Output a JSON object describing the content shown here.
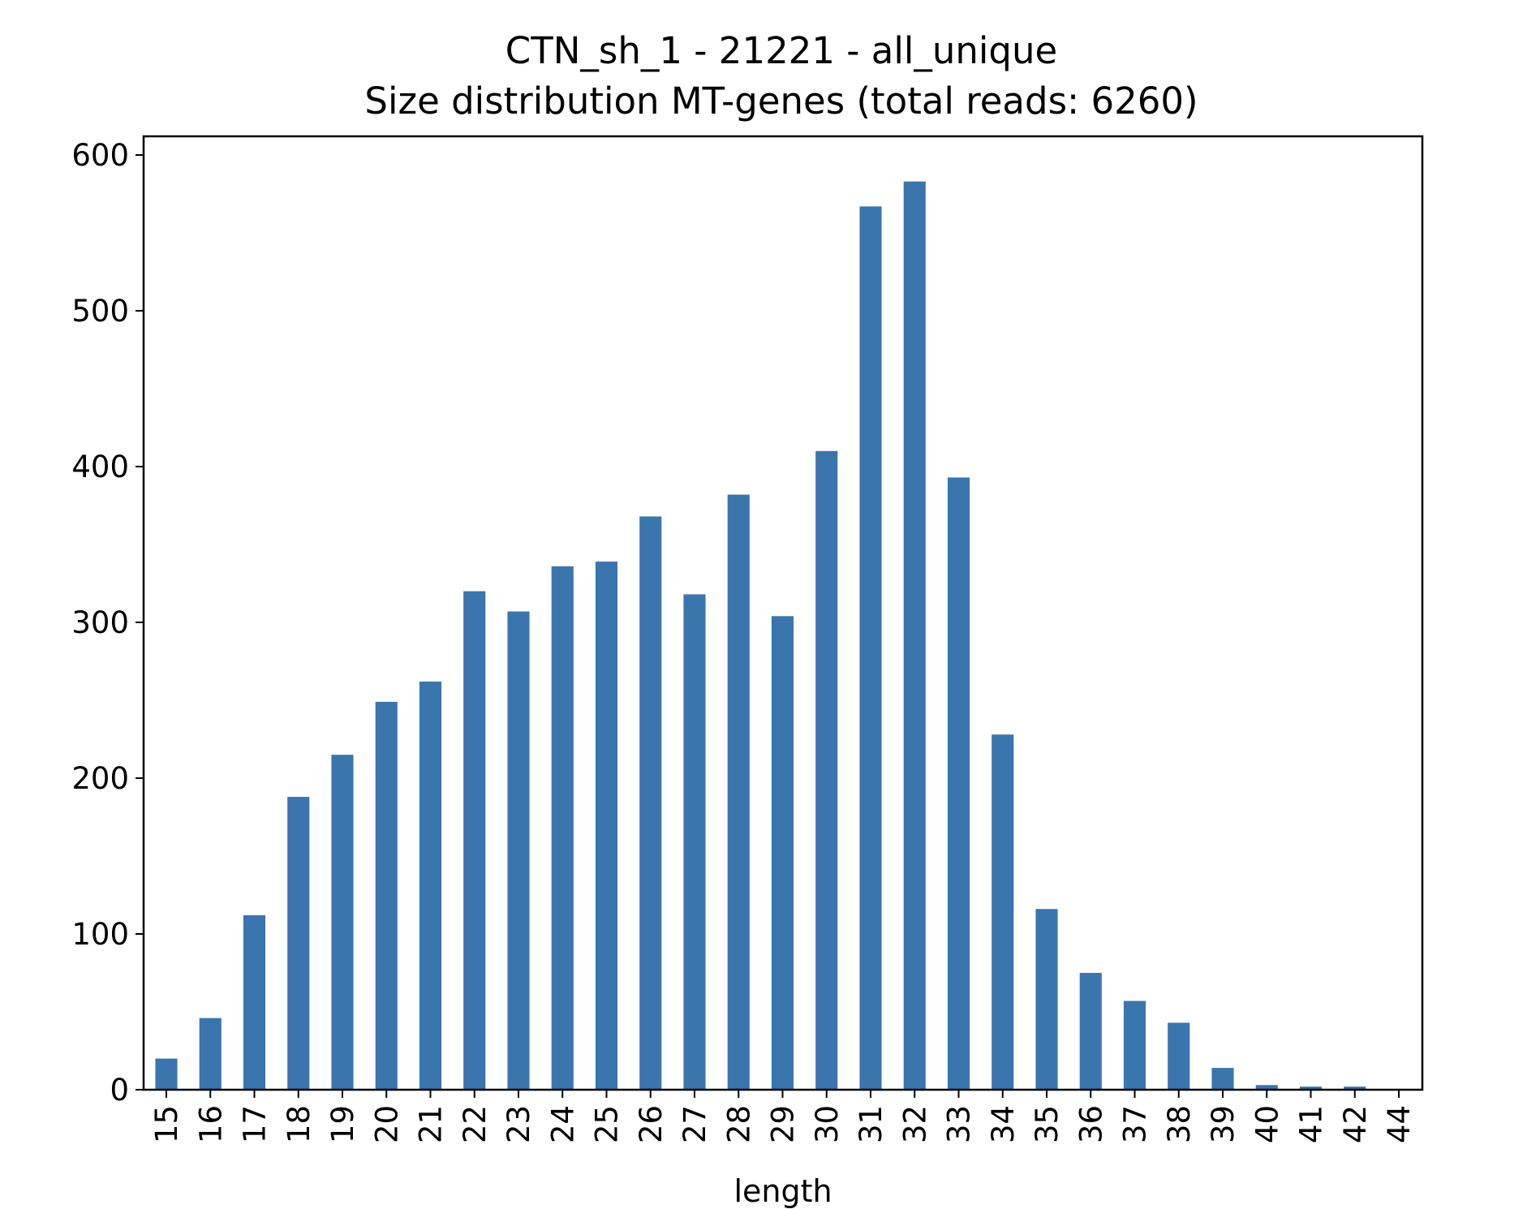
{
  "chart_data": {
    "type": "bar",
    "title": "CTN_sh_1 - 21221 - all_unique",
    "subtitle": "Size distribution MT-genes (total reads: 6260)",
    "xlabel": "length",
    "ylabel": "",
    "categories": [
      "15",
      "16",
      "17",
      "18",
      "19",
      "20",
      "21",
      "22",
      "23",
      "24",
      "25",
      "26",
      "27",
      "28",
      "29",
      "30",
      "31",
      "32",
      "33",
      "34",
      "35",
      "36",
      "37",
      "38",
      "39",
      "40",
      "41",
      "42",
      "44"
    ],
    "values": [
      20,
      46,
      112,
      188,
      215,
      249,
      262,
      320,
      307,
      336,
      339,
      368,
      318,
      382,
      304,
      410,
      567,
      583,
      393,
      228,
      116,
      75,
      57,
      43,
      14,
      3,
      2,
      2,
      0
    ],
    "ylim": [
      0,
      612
    ],
    "yticks": [
      0,
      100,
      200,
      300,
      400,
      500,
      600
    ],
    "bar_color": "#3a75ae",
    "grid": false,
    "legend": "none"
  }
}
